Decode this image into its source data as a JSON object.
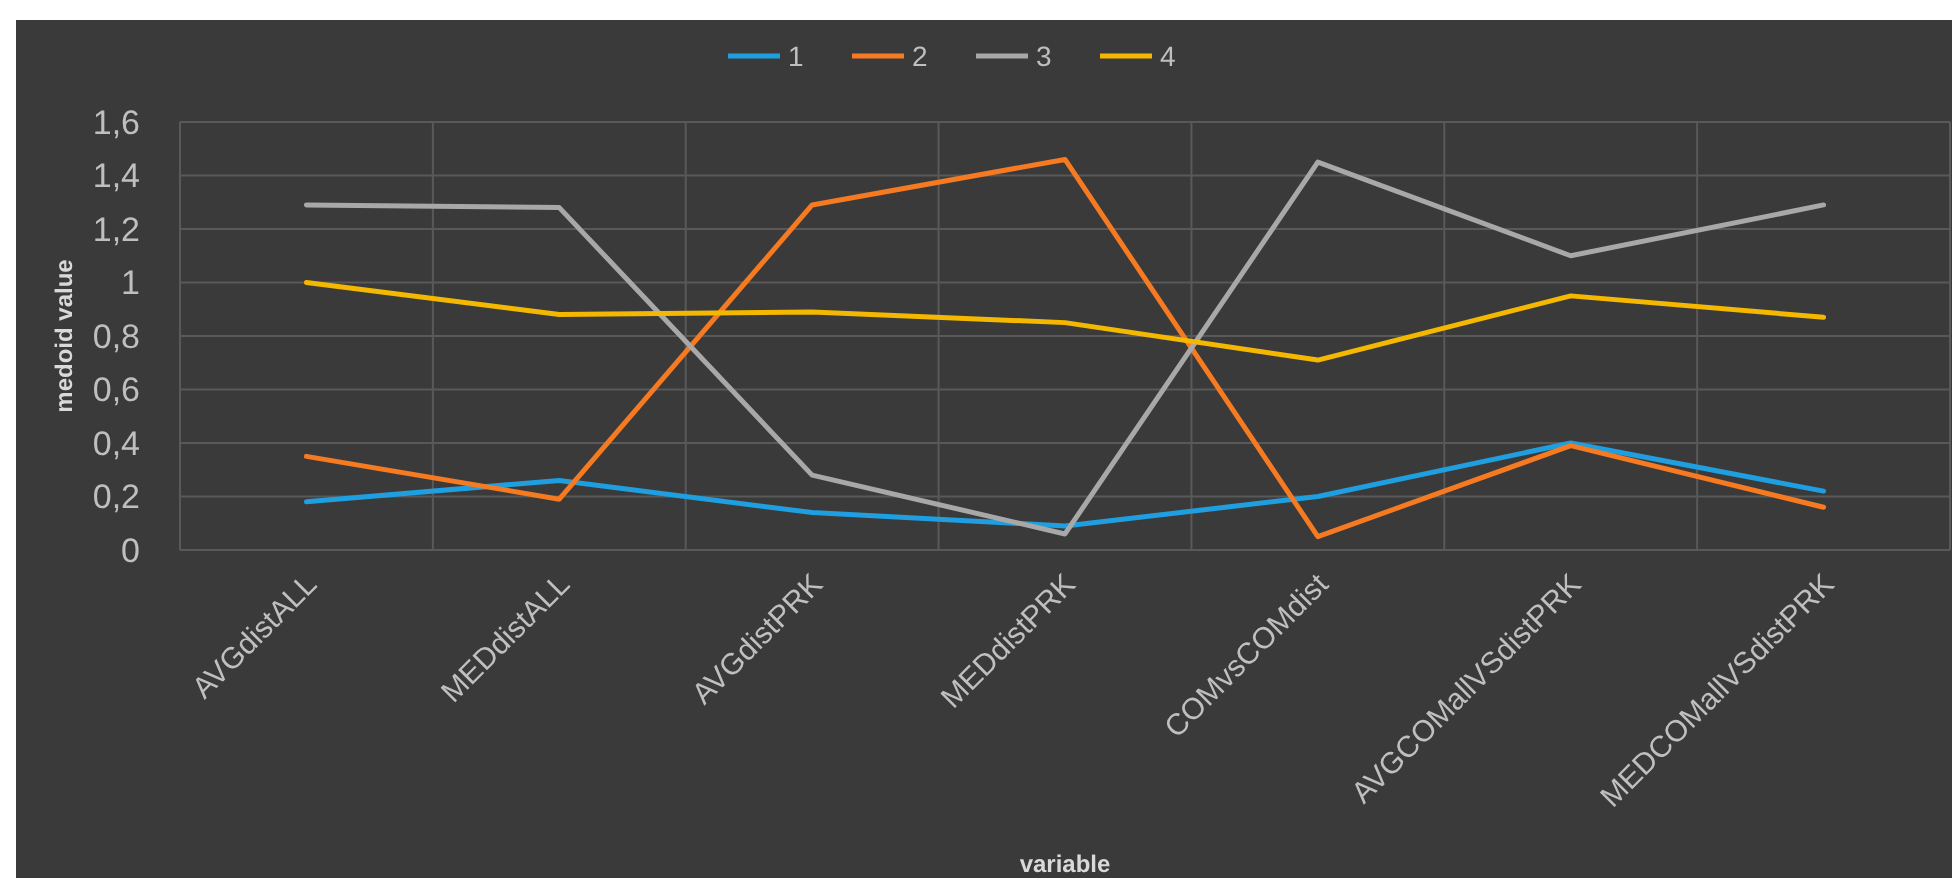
{
  "chart_data": {
    "type": "line",
    "xlabel": "variable",
    "ylabel": "medoid value",
    "categories": [
      "AVGdistALL",
      "MEDdistALL",
      "AVGdistPRK",
      "MEDdistPRK",
      "COMvsCOMdist",
      "AVGCOMallVSdistPRK",
      "MEDCOMallVSdistPRK"
    ],
    "series": [
      {
        "name": "1",
        "color": "#1f9ee0",
        "values": [
          0.18,
          0.26,
          0.14,
          0.09,
          0.2,
          0.4,
          0.22
        ]
      },
      {
        "name": "2",
        "color": "#f57a22",
        "values": [
          0.35,
          0.19,
          1.29,
          1.46,
          0.05,
          0.39,
          0.16
        ]
      },
      {
        "name": "3",
        "color": "#a8a8a8",
        "values": [
          1.29,
          1.28,
          0.28,
          0.06,
          1.45,
          1.1,
          1.29
        ]
      },
      {
        "name": "4",
        "color": "#f5b800",
        "values": [
          1,
          0.88,
          0.89,
          0.85,
          0.71,
          0.95,
          0.87
        ]
      }
    ],
    "ylim": [
      0,
      1.6
    ],
    "yticks": [
      0,
      {
        "value": 0.2,
        "label": "0,2"
      },
      {
        "value": 0.4,
        "label": "0,4"
      },
      {
        "value": 0.6,
        "label": "0,6"
      },
      {
        "value": 0.8,
        "label": "0,8"
      },
      1,
      {
        "value": 1.2,
        "label": "1,2"
      },
      {
        "value": 1.4,
        "label": "1,4"
      },
      {
        "value": 1.6,
        "label": "1,6"
      }
    ],
    "grid": true,
    "legend": "top",
    "marker": "none",
    "line_style": "solid"
  }
}
